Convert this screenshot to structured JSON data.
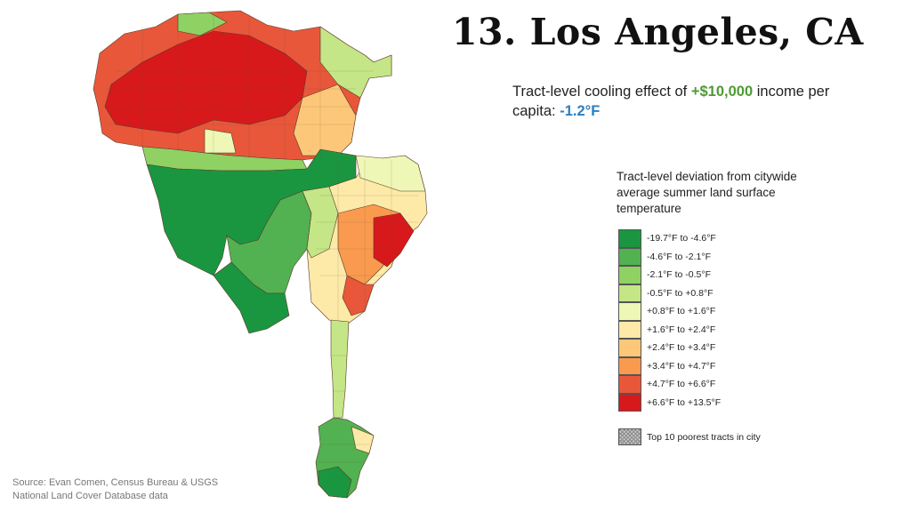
{
  "title": "13. Los Angeles, CA",
  "subtitle": {
    "prefix": "Tract-level cooling effect of ",
    "income": "+$10,000",
    "middle": " income per capita: ",
    "effect": "-1.2°F",
    "income_color": "#4e9a35",
    "effect_color": "#2a7fc0"
  },
  "legend": {
    "title": "Tract-level deviation from citywide average summer land surface temperature",
    "items": [
      {
        "label": "-19.7°F to -4.6°F",
        "color": "#1a9641"
      },
      {
        "label": "-4.6°F to -2.1°F",
        "color": "#52b151"
      },
      {
        "label": "-2.1°F to -0.5°F",
        "color": "#8fd163"
      },
      {
        "label": "-0.5°F to +0.8°F",
        "color": "#c4e687"
      },
      {
        "label": "+0.8°F to +1.6°F",
        "color": "#eef7b5"
      },
      {
        "label": "+1.6°F to +2.4°F",
        "color": "#fde9a8"
      },
      {
        "label": "+2.4°F to +3.4°F",
        "color": "#fdc77a"
      },
      {
        "label": "+3.4°F to +4.7°F",
        "color": "#f99a4f"
      },
      {
        "label": "+4.7°F to +6.6°F",
        "color": "#e8573a"
      },
      {
        "label": "+6.6°F to +13.5°F",
        "color": "#d7191c"
      }
    ],
    "poorest_label": "Top 10 poorest tracts in city"
  },
  "source": {
    "line1": "Source: Evan Comen, Census Bureau & USGS",
    "line2": "National Land Cover Database data"
  }
}
